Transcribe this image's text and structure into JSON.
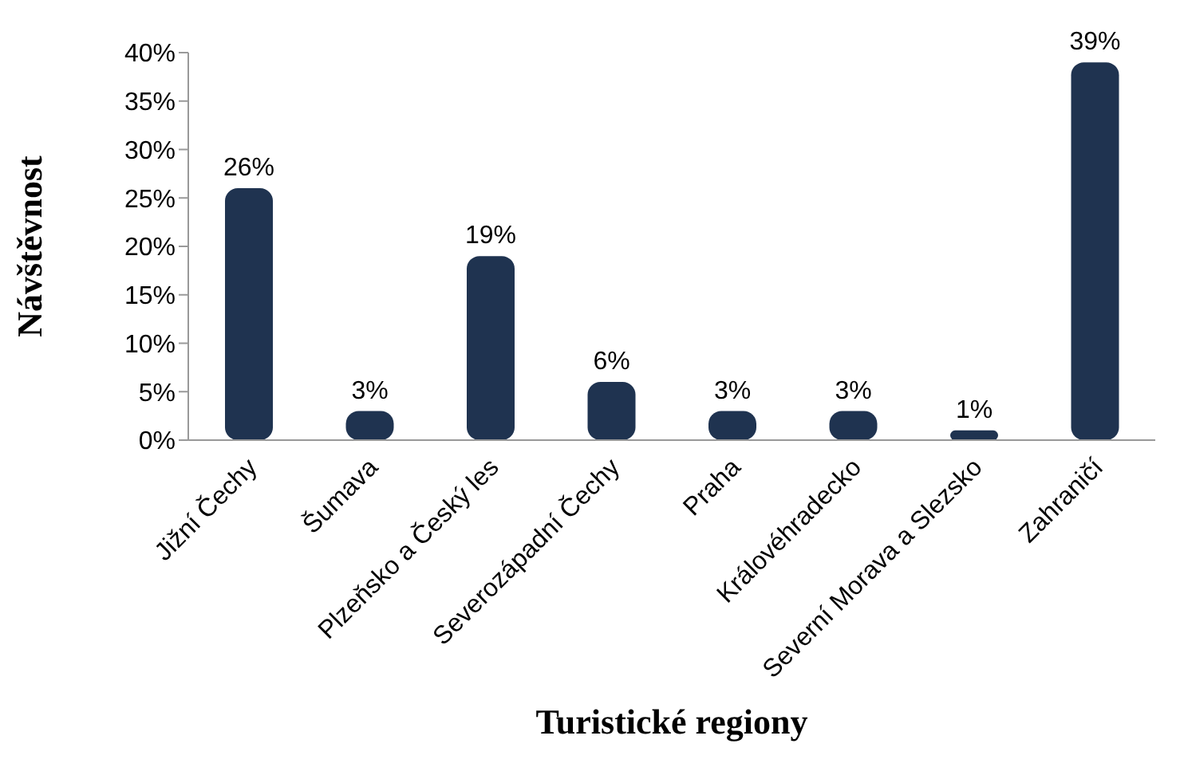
{
  "chart_data": {
    "type": "bar",
    "xlabel": "Turistické regiony",
    "ylabel": "Návštěvnost",
    "categories": [
      "Jižní Čechy",
      "Šumava",
      "Plzeňsko a Český les",
      "Severozápadní Čechy",
      "Praha",
      "Královéhradecko",
      "Severní Morava a Slezsko",
      "Zahraničí"
    ],
    "values": [
      26,
      3,
      19,
      6,
      3,
      3,
      1,
      39
    ],
    "value_labels": [
      "26%",
      "3%",
      "19%",
      "6%",
      "3%",
      "3%",
      "1%",
      "39%"
    ],
    "color": "#1f3350",
    "ylim": [
      0,
      40
    ],
    "yticks": [
      {
        "value": 0,
        "label": "0%"
      },
      {
        "value": 5,
        "label": "5%"
      },
      {
        "value": 10,
        "label": "10%"
      },
      {
        "value": 15,
        "label": "15%"
      },
      {
        "value": 20,
        "label": "20%"
      },
      {
        "value": 25,
        "label": "25%"
      },
      {
        "value": 30,
        "label": "30%"
      },
      {
        "value": 35,
        "label": "35%"
      },
      {
        "value": 40,
        "label": "40%"
      }
    ],
    "grid": false,
    "legend": false
  }
}
